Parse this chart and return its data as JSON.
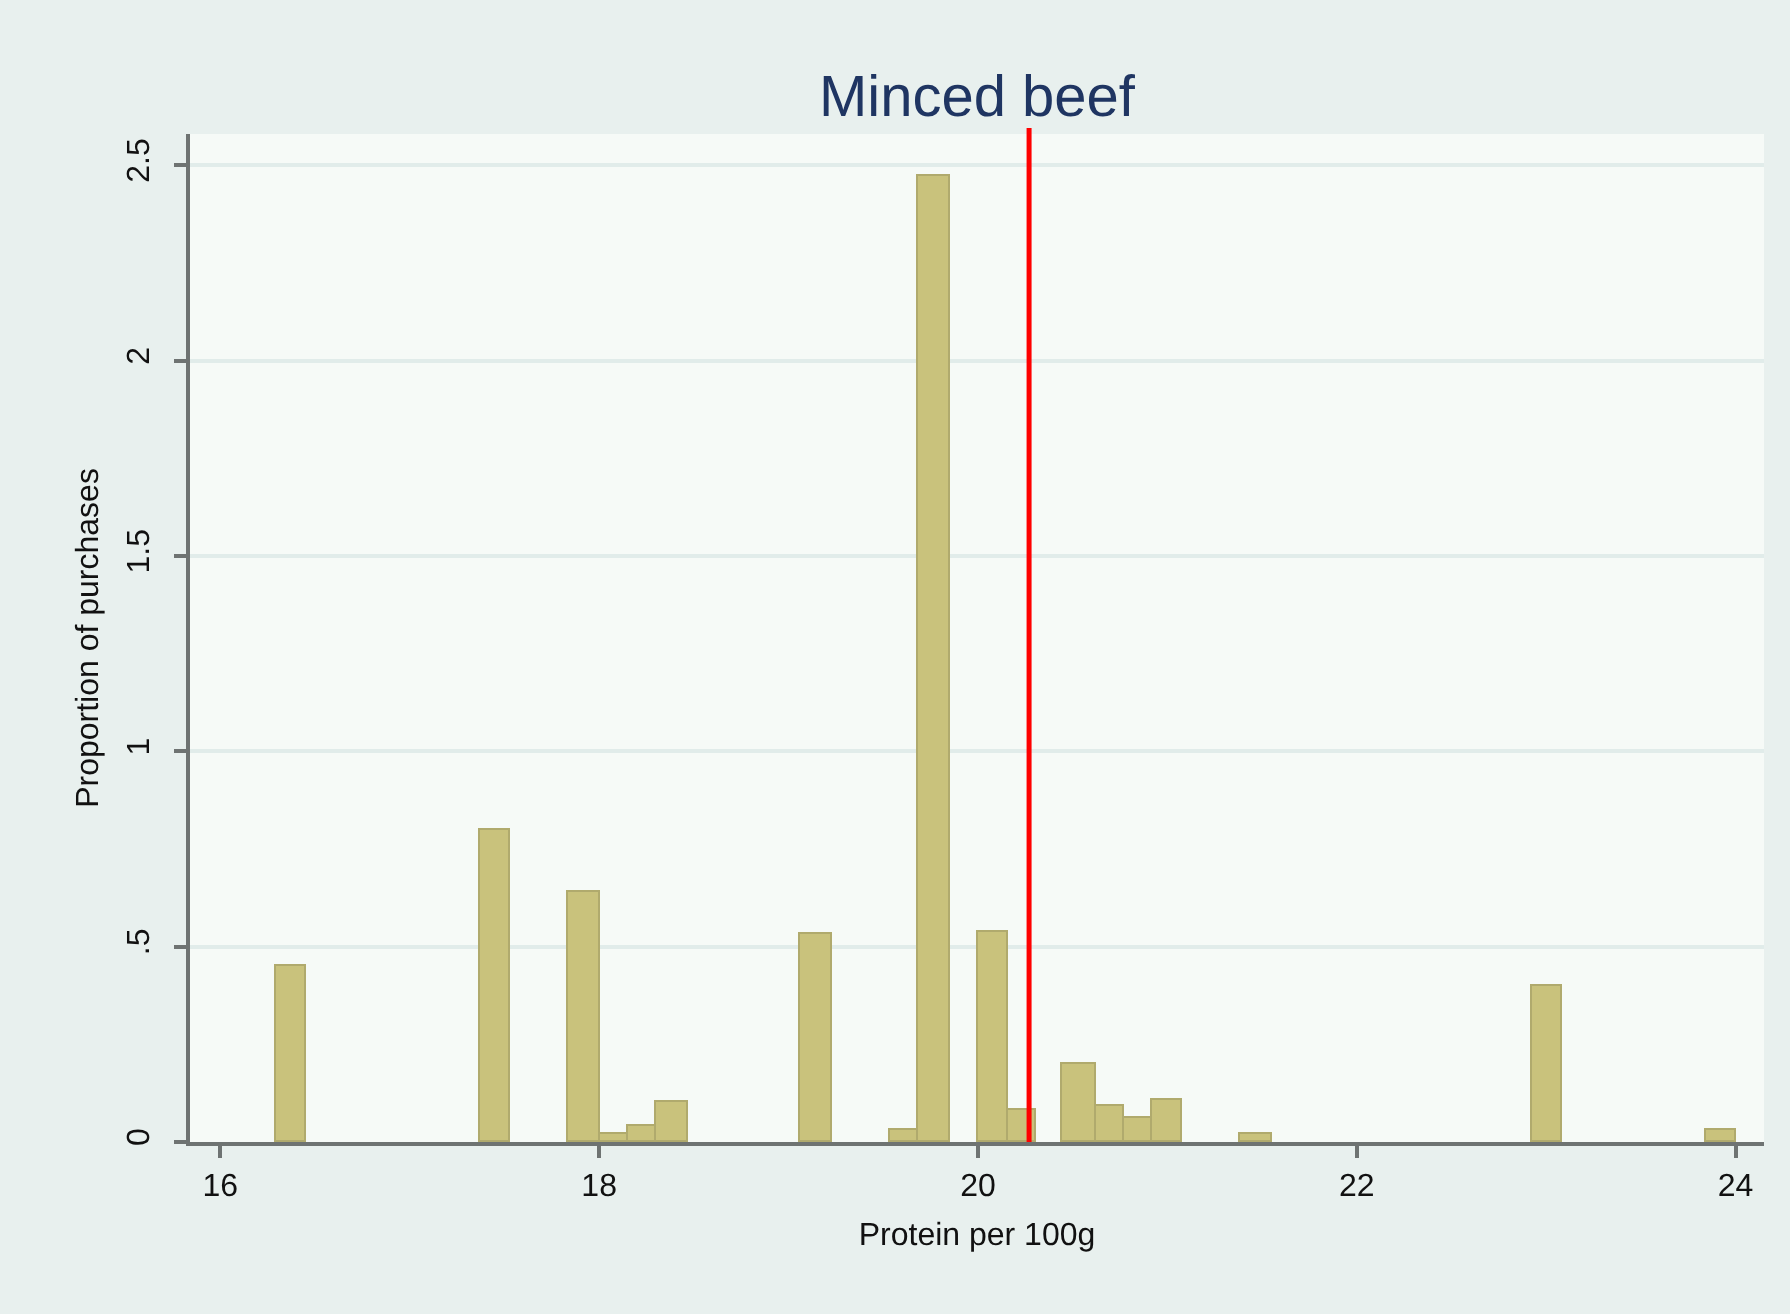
{
  "chart_data": {
    "type": "histogram",
    "title": "Minced beef",
    "xlabel": "Protein per 100g",
    "ylabel": "Proportion of purchases",
    "bins": [
      16.29,
      16.45,
      17.37,
      17.53,
      17.84,
      18.0,
      18.15,
      18.3,
      18.47,
      19.06,
      19.23,
      19.54,
      19.68,
      19.85,
      20.0,
      20.16,
      20.31,
      20.44,
      20.62,
      20.77,
      20.92,
      21.08,
      21.38,
      21.55,
      22.93,
      23.08,
      23.84,
      24.0
    ],
    "values": [
      0.45,
      null,
      0.8,
      null,
      0.64,
      0.02,
      0.04,
      0.1,
      null,
      0.53,
      null,
      0.03,
      2.47,
      null,
      0.54,
      0.08,
      null,
      0.2,
      0.09,
      0.06,
      0.11,
      null,
      0.02,
      null,
      0.4,
      null,
      0.03
    ],
    "color": "#c9c27c",
    "xlim": [
      15.84,
      24.15
    ],
    "ylim": [
      0,
      2.58
    ],
    "xticks": [
      16,
      18,
      20,
      22,
      24
    ],
    "yticks": [
      0,
      {
        "value": 0.5,
        "label": ".5"
      },
      1,
      1.5,
      2,
      2.5
    ],
    "grid": "y",
    "ref_lines": [
      {
        "axis": "x",
        "value": 20.27,
        "color": "#ff0000"
      }
    ]
  }
}
